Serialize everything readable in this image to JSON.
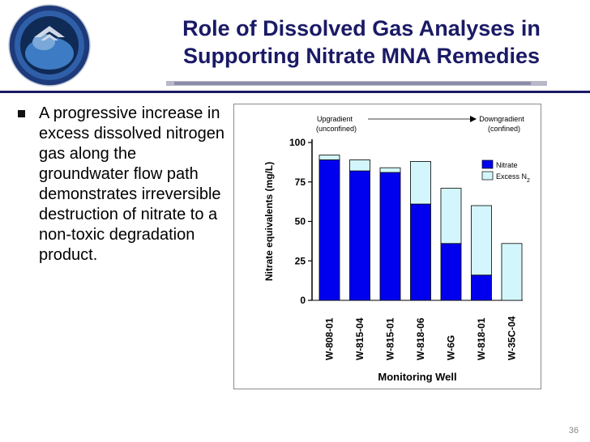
{
  "slide": {
    "title_line1": "Role of Dissolved Gas Analyses in",
    "title_line2": "Supporting Nitrate MNA Remedies",
    "bullet": "A progressive increase in excess dissolved nitrogen gas along the groundwater flow path demonstrates irreversible destruction of nitrate to a non-toxic degradation product.",
    "page_number": "36",
    "colors": {
      "title": "#1a1a66",
      "nitrate": "#0000ee",
      "excess_n2": "#d2f6fc"
    },
    "logo_icon": "conference-seal-icon"
  },
  "chart_data": {
    "type": "bar",
    "stacked": true,
    "categories": [
      "W-808-01",
      "W-815-04",
      "W-815-01",
      "W-818-06",
      "W-6G",
      "W-818-01",
      "W-35C-04"
    ],
    "series": [
      {
        "name": "Nitrate",
        "values": [
          89,
          82,
          81,
          61,
          36,
          16,
          0
        ],
        "color": "#0000ee"
      },
      {
        "name": "Excess N",
        "values": [
          3,
          7,
          3,
          27,
          35,
          44,
          36
        ],
        "color": "#d2f6fc"
      }
    ],
    "legend_subscript": "2",
    "ylabel": "Nitrate equivalents (mg/L)",
    "xlabel": "Monitoring Well",
    "ylim": [
      0,
      100
    ],
    "yticks": [
      0,
      25,
      50,
      75,
      100
    ],
    "annotations": {
      "upgradient": "Upgradient",
      "upgradient_sub": "(unconfined)",
      "downgradient": "Downgradient",
      "downgradient_sub": "(confined)"
    },
    "legend_position": "top-right",
    "grid": false
  }
}
